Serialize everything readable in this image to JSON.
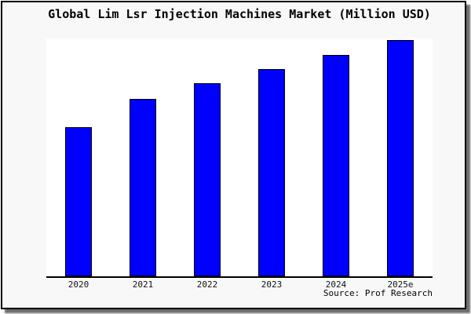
{
  "chart": {
    "title": "Global Lim Lsr Injection Machines Market (Million USD)",
    "source": "Source: Prof Research"
  },
  "chart_data": {
    "type": "bar",
    "title": "Global Lim Lsr Injection Machines Market (Million USD)",
    "categories": [
      "2020",
      "2021",
      "2022",
      "2023",
      "2024",
      "2025e"
    ],
    "values": [
      63,
      75,
      81.5,
      87.5,
      93.5,
      100
    ],
    "value_note": "no y-axis ticks or data labels shown; values are relative bar heights with 2025e = 100",
    "xlabel": "",
    "ylabel": "",
    "ylim": [
      0,
      100.5
    ],
    "grid": false,
    "legend": false,
    "annotations": [
      "Source: Prof Research"
    ],
    "bar_color": "#0000ff",
    "bar_border_color": "#000000"
  },
  "colors": {
    "card_background": "#f8f8f8",
    "plot_background": "#ffffff",
    "axis": "#000000",
    "text": "#000000",
    "shadow": "#6e6e6e"
  }
}
